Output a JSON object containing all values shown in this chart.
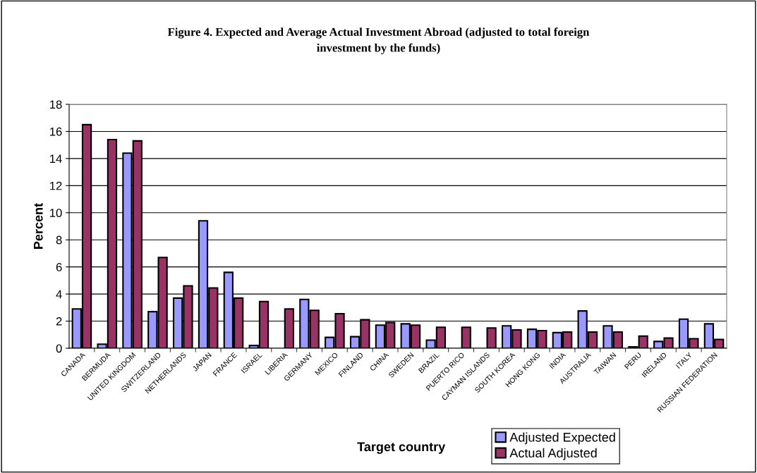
{
  "chart_data": {
    "type": "bar",
    "title": "Figure 4. Expected and Average Actual Investment Abroad (adjusted to total foreign\ninvestment by the funds)",
    "xlabel": "Target country",
    "ylabel": "Percent",
    "categories": [
      "CANADA",
      "BERMUDA",
      "UNITED KINGDOM",
      "SWITZERLAND",
      "NETHERLANDS",
      "JAPAN",
      "FRANCE",
      "ISRAEL",
      "LIBERIA",
      "GERMANY",
      "MEXICO",
      "FINLAND",
      "CHINA",
      "SWEDEN",
      "BRAZIL",
      "PUERTO RICO",
      "CAYMAN ISLANDS",
      "SOUTH KOREA",
      "HONG KONG",
      "INDIA",
      "AUSTRALIA",
      "TAIWAN",
      "PERU",
      "IRELAND",
      "ITALY",
      "RUSSIAN FEDERATION"
    ],
    "series": [
      {
        "name": "Adjusted Expected",
        "color": "#9999ff",
        "values": [
          2.9,
          0.3,
          14.4,
          2.7,
          3.7,
          9.4,
          5.6,
          0.2,
          null,
          3.6,
          0.8,
          0.85,
          1.7,
          1.8,
          0.6,
          null,
          null,
          1.65,
          1.4,
          1.15,
          2.75,
          1.65,
          0.1,
          0.5,
          2.15,
          1.8
        ]
      },
      {
        "name": "Actual Adjusted",
        "color": "#993366",
        "values": [
          16.5,
          15.4,
          15.3,
          6.7,
          4.6,
          4.45,
          3.7,
          3.45,
          2.9,
          2.8,
          2.55,
          2.1,
          1.9,
          1.7,
          1.55,
          1.55,
          1.5,
          1.35,
          1.3,
          1.2,
          1.2,
          1.2,
          0.9,
          0.75,
          0.7,
          0.65
        ]
      }
    ],
    "ylim": [
      0,
      18
    ],
    "yticks": [
      0,
      2,
      4,
      6,
      8,
      10,
      12,
      14,
      16,
      18
    ],
    "grid": "y",
    "legend": "bottom right"
  }
}
